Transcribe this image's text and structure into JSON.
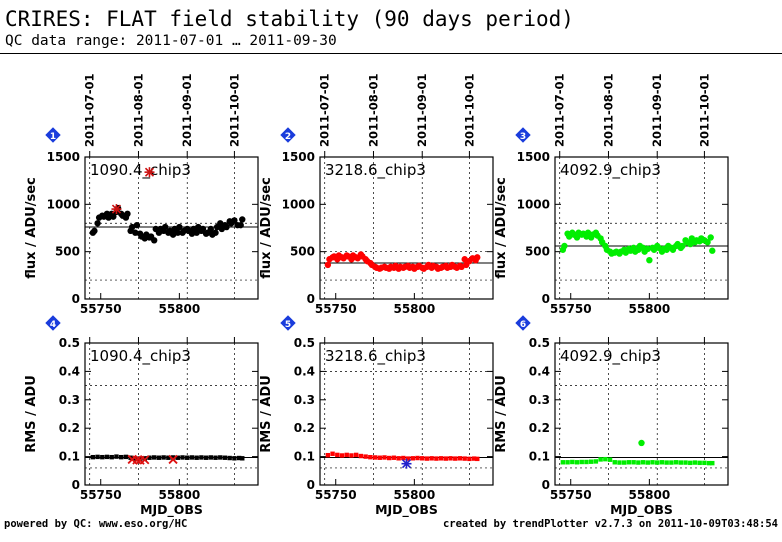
{
  "header": {
    "title": "CRIRES: FLAT field stability (90 days period)",
    "subtitle": "QC data range: 2011-07-01 … 2011-09-30"
  },
  "footer": {
    "left": "powered by QC: www.eso.org/HC",
    "right": "created by trendPlotter v2.7.3 on 2011-10-09T03:48:54"
  },
  "chart_data": [
    {
      "type": "scatter",
      "index": "1",
      "color": "#000000",
      "label": "1090.4_chip3",
      "ylabel": "flux / ADU/sec",
      "xlabel": "",
      "xlim": [
        55740,
        55850
      ],
      "ylim": [
        0,
        1500
      ],
      "xticks": [
        55750,
        55800
      ],
      "yticks": [
        0,
        500,
        1000,
        1500
      ],
      "ref_line": 760,
      "dotted_h": [
        200,
        800
      ],
      "top_date_labels": [
        "2011-07-01",
        "2011-08-01",
        "2011-09-01",
        "2011-10-01"
      ],
      "top_date_mjd": [
        55743,
        55774,
        55805,
        55835
      ],
      "outliers": [
        {
          "x": 55760,
          "y": 950
        },
        {
          "x": 55781,
          "y": 1340
        }
      ],
      "series": [
        {
          "x": [
            55745,
            55746,
            55748,
            55749,
            55751,
            55752,
            55754,
            55755,
            55757,
            55758,
            55760,
            55761,
            55763,
            55764,
            55766,
            55767,
            55769,
            55770,
            55772,
            55773,
            55775,
            55776,
            55778,
            55779,
            55781,
            55782,
            55784,
            55785,
            55787,
            55788,
            55790,
            55791,
            55793,
            55794,
            55796,
            55797,
            55799,
            55800,
            55802,
            55803,
            55805,
            55806,
            55808,
            55809,
            55811,
            55812,
            55814,
            55815,
            55817,
            55818,
            55820,
            55821,
            55823,
            55824,
            55826,
            55827,
            55829,
            55830,
            55832,
            55833,
            55835,
            55837,
            55839,
            55840
          ],
          "values": [
            700,
            720,
            800,
            860,
            880,
            870,
            900,
            860,
            900,
            870,
            920,
            960,
            900,
            880,
            860,
            900,
            720,
            760,
            700,
            780,
            690,
            660,
            640,
            680,
            650,
            660,
            620,
            740,
            700,
            740,
            720,
            760,
            700,
            720,
            680,
            740,
            700,
            760,
            700,
            720,
            740,
            720,
            690,
            740,
            700,
            760,
            720,
            740,
            690,
            700,
            740,
            680,
            700,
            760,
            800,
            740,
            780,
            760,
            820,
            800,
            830,
            780,
            780,
            840
          ]
        }
      ]
    },
    {
      "type": "scatter",
      "index": "2",
      "color": "#ff0000",
      "label": "3218.6_chip3",
      "ylabel": "",
      "xlabel": "",
      "xlim": [
        55740,
        55850
      ],
      "ylim": [
        0,
        1500
      ],
      "xticks": [
        55750,
        55800
      ],
      "yticks": [
        0,
        500,
        1000,
        1500
      ],
      "ref_line": 380,
      "dotted_h": [
        200,
        500
      ],
      "top_date_labels": [
        "2011-07-01",
        "2011-08-01",
        "2011-09-01",
        "2011-10-01"
      ],
      "top_date_mjd": [
        55743,
        55774,
        55805,
        55835
      ],
      "outliers": [],
      "series": [
        {
          "x": [
            55745,
            55746,
            55748,
            55749,
            55751,
            55752,
            55754,
            55755,
            55757,
            55758,
            55760,
            55761,
            55763,
            55764,
            55766,
            55767,
            55769,
            55770,
            55772,
            55773,
            55775,
            55776,
            55778,
            55779,
            55781,
            55782,
            55784,
            55785,
            55787,
            55788,
            55790,
            55791,
            55793,
            55794,
            55796,
            55797,
            55799,
            55800,
            55802,
            55803,
            55805,
            55806,
            55808,
            55809,
            55811,
            55812,
            55814,
            55815,
            55817,
            55818,
            55820,
            55821,
            55823,
            55824,
            55826,
            55827,
            55829,
            55830,
            55832,
            55833,
            55835,
            55837,
            55839,
            55840
          ],
          "values": [
            360,
            420,
            440,
            450,
            420,
            460,
            440,
            430,
            460,
            450,
            420,
            460,
            440,
            430,
            470,
            450,
            420,
            400,
            380,
            360,
            340,
            330,
            320,
            330,
            340,
            330,
            320,
            340,
            330,
            350,
            320,
            340,
            330,
            340,
            350,
            330,
            340,
            320,
            340,
            350,
            330,
            320,
            340,
            360,
            330,
            350,
            340,
            320,
            330,
            340,
            350,
            330,
            340,
            360,
            340,
            330,
            350,
            340,
            420,
            360,
            400,
            430,
            410,
            440
          ]
        }
      ]
    },
    {
      "type": "scatter",
      "index": "3",
      "color": "#00ee00",
      "label": "4092.9_chip3",
      "ylabel": "",
      "xlabel": "",
      "xlim": [
        55740,
        55850
      ],
      "ylim": [
        0,
        1500
      ],
      "xticks": [
        55750,
        55800
      ],
      "yticks": [
        0,
        500,
        1000,
        1500
      ],
      "ref_line": 560,
      "dotted_h": [
        200,
        800
      ],
      "top_date_labels": [
        "2011-07-01",
        "2011-08-01",
        "2011-09-01",
        "2011-10-01"
      ],
      "top_date_mjd": [
        55743,
        55774,
        55805,
        55835
      ],
      "outliers": [],
      "series": [
        {
          "x": [
            55745,
            55746,
            55748,
            55749,
            55751,
            55752,
            55754,
            55755,
            55757,
            55758,
            55760,
            55761,
            55763,
            55764,
            55766,
            55767,
            55769,
            55770,
            55772,
            55773,
            55775,
            55776,
            55778,
            55779,
            55781,
            55782,
            55784,
            55785,
            55787,
            55788,
            55790,
            55791,
            55793,
            55794,
            55796,
            55797,
            55799,
            55800,
            55802,
            55803,
            55805,
            55806,
            55808,
            55809,
            55811,
            55812,
            55814,
            55815,
            55817,
            55818,
            55820,
            55821,
            55823,
            55824,
            55826,
            55827,
            55829,
            55830,
            55832,
            55833,
            55835,
            55837,
            55839,
            55840
          ],
          "values": [
            520,
            560,
            690,
            660,
            700,
            680,
            650,
            700,
            680,
            690,
            660,
            700,
            650,
            680,
            700,
            670,
            640,
            600,
            560,
            520,
            500,
            480,
            490,
            500,
            480,
            500,
            520,
            490,
            530,
            510,
            540,
            500,
            520,
            560,
            540,
            500,
            530,
            410,
            540,
            520,
            560,
            540,
            500,
            530,
            520,
            560,
            540,
            520,
            560,
            580,
            540,
            560,
            620,
            600,
            580,
            640,
            600,
            620,
            610,
            640,
            620,
            600,
            650,
            510
          ]
        }
      ]
    },
    {
      "type": "scatter",
      "index": "4",
      "color": "#000000",
      "label": "1090.4_chip3",
      "ylabel": "RMS / ADU",
      "xlabel": "MJD_OBS",
      "xlim": [
        55740,
        55850
      ],
      "ylim": [
        0,
        0.5
      ],
      "xticks": [
        55750,
        55800
      ],
      "yticks": [
        0,
        0.1,
        0.2,
        0.3,
        0.4,
        0.5
      ],
      "ref_line": 0.097,
      "dotted_h": [
        0.06,
        0.35
      ],
      "top_date_labels": [],
      "top_date_mjd": [
        55743,
        55774,
        55805,
        55835
      ],
      "outliers": [
        {
          "x": 55770,
          "y": 0.09
        },
        {
          "x": 55773,
          "y": 0.088
        },
        {
          "x": 55775,
          "y": 0.087
        },
        {
          "x": 55778,
          "y": 0.089
        },
        {
          "x": 55796,
          "y": 0.09
        }
      ],
      "series": [
        {
          "x": [
            55745,
            55748,
            55751,
            55754,
            55757,
            55760,
            55763,
            55766,
            55769,
            55772,
            55775,
            55778,
            55781,
            55784,
            55787,
            55790,
            55793,
            55796,
            55799,
            55802,
            55805,
            55808,
            55811,
            55814,
            55817,
            55820,
            55823,
            55826,
            55829,
            55832,
            55835,
            55838,
            55840
          ],
          "values": [
            0.098,
            0.099,
            0.098,
            0.099,
            0.098,
            0.1,
            0.098,
            0.099,
            0.096,
            0.094,
            0.093,
            0.094,
            0.096,
            0.097,
            0.096,
            0.097,
            0.096,
            0.097,
            0.096,
            0.097,
            0.096,
            0.097,
            0.096,
            0.097,
            0.096,
            0.097,
            0.096,
            0.097,
            0.096,
            0.095,
            0.094,
            0.095,
            0.094
          ]
        }
      ]
    },
    {
      "type": "scatter",
      "index": "5",
      "color": "#ff0000",
      "label": "3218.6_chip3",
      "ylabel": "",
      "xlabel": "MJD_OBS",
      "xlim": [
        55740,
        55850
      ],
      "ylim": [
        0,
        0.5
      ],
      "xticks": [
        55750,
        55800
      ],
      "yticks": [
        0,
        0.1,
        0.2,
        0.3,
        0.4,
        0.5
      ],
      "ref_line": 0.097,
      "dotted_h": [
        0.06,
        0.4
      ],
      "top_date_labels": [],
      "top_date_mjd": [
        55743,
        55774,
        55805,
        55835
      ],
      "outliers": [
        {
          "x": 55795,
          "y": 0.075,
          "color": "#2222cc"
        }
      ],
      "series": [
        {
          "x": [
            55745,
            55748,
            55751,
            55754,
            55757,
            55760,
            55763,
            55766,
            55769,
            55772,
            55775,
            55778,
            55781,
            55784,
            55787,
            55790,
            55793,
            55796,
            55799,
            55802,
            55805,
            55808,
            55811,
            55814,
            55817,
            55820,
            55823,
            55826,
            55829,
            55832,
            55835,
            55838,
            55840
          ],
          "values": [
            0.105,
            0.11,
            0.106,
            0.104,
            0.106,
            0.104,
            0.106,
            0.102,
            0.1,
            0.098,
            0.097,
            0.096,
            0.097,
            0.095,
            0.096,
            0.094,
            0.095,
            0.093,
            0.094,
            0.095,
            0.094,
            0.093,
            0.094,
            0.093,
            0.094,
            0.093,
            0.094,
            0.093,
            0.094,
            0.093,
            0.092,
            0.093,
            0.092
          ]
        }
      ]
    },
    {
      "type": "scatter",
      "index": "6",
      "color": "#00ee00",
      "label": "4092.9_chip3",
      "ylabel": "",
      "xlabel": "MJD_OBS",
      "xlim": [
        55740,
        55850
      ],
      "ylim": [
        0,
        0.5
      ],
      "xticks": [
        55750,
        55800
      ],
      "yticks": [
        0,
        0.1,
        0.2,
        0.3,
        0.4,
        0.5
      ],
      "ref_line": 0.097,
      "dotted_h": [
        0.06,
        0.35
      ],
      "top_date_labels": [],
      "top_date_mjd": [
        55743,
        55774,
        55805,
        55835
      ],
      "outliers": [
        {
          "x": 55795,
          "y": 0.148
        }
      ],
      "series": [
        {
          "x": [
            55745,
            55748,
            55751,
            55754,
            55757,
            55760,
            55763,
            55766,
            55769,
            55772,
            55775,
            55778,
            55781,
            55784,
            55787,
            55790,
            55793,
            55796,
            55799,
            55802,
            55805,
            55808,
            55811,
            55814,
            55817,
            55820,
            55823,
            55826,
            55829,
            55832,
            55835,
            55838,
            55840
          ],
          "values": [
            0.08,
            0.08,
            0.081,
            0.08,
            0.081,
            0.081,
            0.082,
            0.083,
            0.09,
            0.091,
            0.089,
            0.08,
            0.079,
            0.079,
            0.08,
            0.08,
            0.079,
            0.08,
            0.079,
            0.08,
            0.079,
            0.08,
            0.079,
            0.079,
            0.08,
            0.079,
            0.079,
            0.078,
            0.079,
            0.078,
            0.078,
            0.077,
            0.077
          ]
        }
      ]
    }
  ]
}
